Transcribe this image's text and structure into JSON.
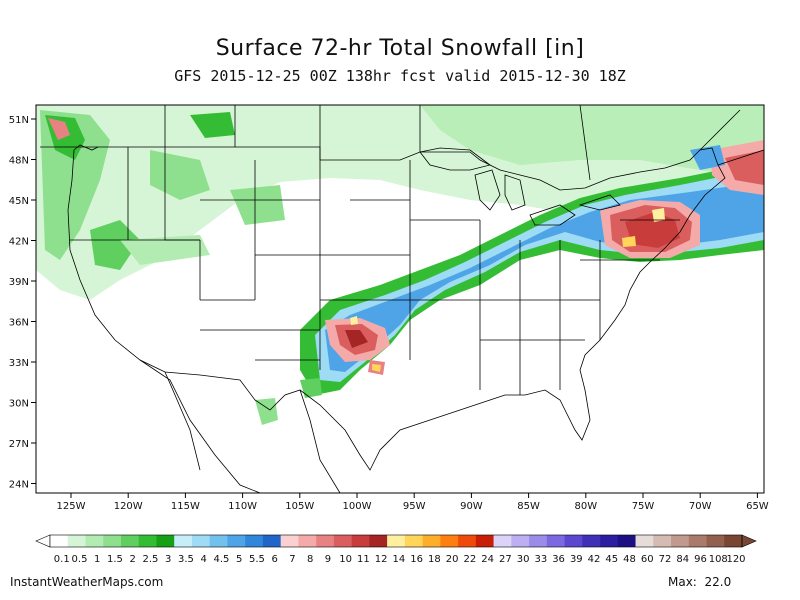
{
  "title": "Surface 72-hr Total Snowfall [in]",
  "subtitle": "GFS 2015-12-25 00Z 138hr fcst valid 2015-12-30 18Z",
  "lon_ticks": [
    "125W",
    "120W",
    "115W",
    "110W",
    "105W",
    "100W",
    "95W",
    "90W",
    "85W",
    "80W",
    "75W",
    "70W",
    "65W"
  ],
  "lat_ticks": [
    "51N",
    "48N",
    "45N",
    "42N",
    "39N",
    "36N",
    "33N",
    "30N",
    "27N",
    "24N"
  ],
  "colorbar": {
    "labels": [
      "0.1",
      "0.5",
      "1",
      "1.5",
      "2",
      "2.5",
      "3",
      "3.5",
      "4",
      "4.5",
      "5",
      "5.5",
      "6",
      "7",
      "8",
      "9",
      "10",
      "11",
      "12",
      "14",
      "16",
      "18",
      "20",
      "22",
      "24",
      "27",
      "30",
      "33",
      "36",
      "39",
      "42",
      "45",
      "48",
      "60",
      "72",
      "84",
      "96",
      "108",
      "120"
    ],
    "colors": [
      "#ffffff",
      "#d6f5d6",
      "#b2ecb2",
      "#8ee08e",
      "#5fcf5f",
      "#34bd34",
      "#16a016",
      "#c6eef8",
      "#9edbf4",
      "#72c0ee",
      "#4ea4e6",
      "#2f86da",
      "#1f66c8",
      "#fad0d0",
      "#f5aaaa",
      "#e88282",
      "#db5e5e",
      "#c83c3c",
      "#a52424",
      "#fff0a0",
      "#ffd65a",
      "#ffae2a",
      "#ff7e12",
      "#f04a0a",
      "#c81e06",
      "#dcd4f8",
      "#bcb0f2",
      "#9c8cea",
      "#7c68e0",
      "#5c48d0",
      "#4030b8",
      "#2c1ea0",
      "#1c1084",
      "#e6dcd8",
      "#d4bcb4",
      "#c09a8e",
      "#aa7a6c",
      "#94604e",
      "#7a4634"
    ]
  },
  "footer": {
    "site": "InstantWeatherMaps.com",
    "max_label": "Max:",
    "max_value": "22.0"
  }
}
